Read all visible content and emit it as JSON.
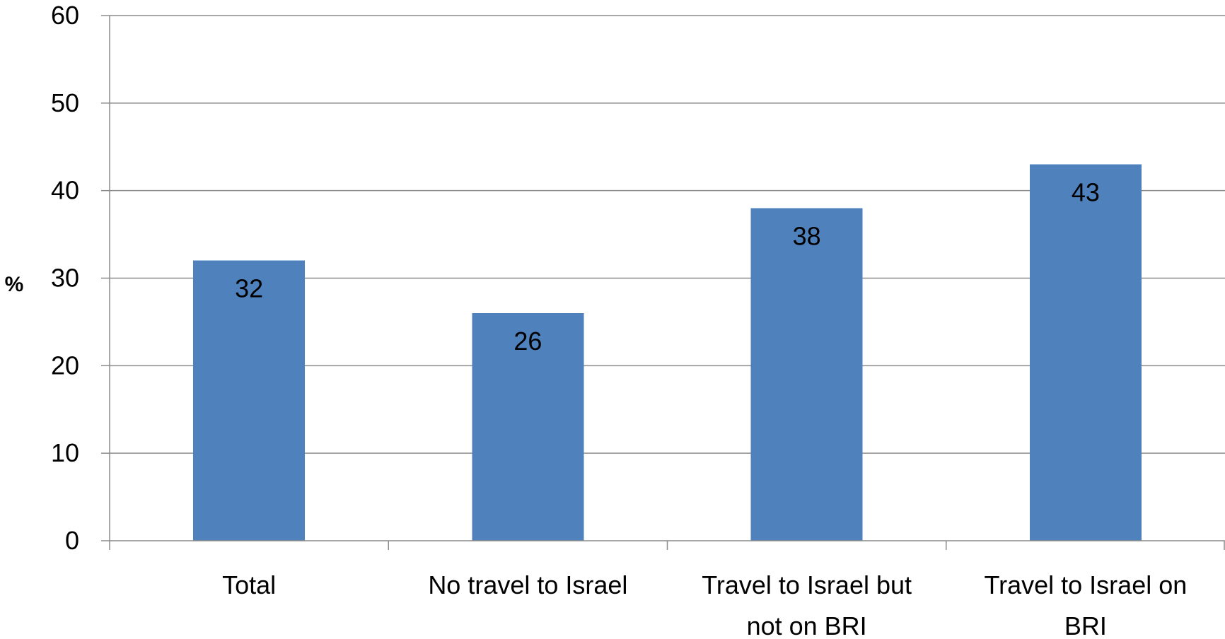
{
  "chart_data": {
    "type": "bar",
    "title": "",
    "xlabel": "",
    "ylabel": "%",
    "ylim": [
      0,
      60
    ],
    "yticks": [
      "0",
      "10",
      "20",
      "30",
      "40",
      "50",
      "60"
    ],
    "grid": true,
    "legend": "none",
    "categories": [
      [
        "Total"
      ],
      [
        "No travel to Israel"
      ],
      [
        "Travel to Israel but",
        "not on BRI"
      ],
      [
        "Travel to Israel on",
        "BRI"
      ]
    ],
    "values": [
      32,
      26,
      38,
      43
    ],
    "data_labels": [
      "32",
      "26",
      "38",
      "43"
    ],
    "colors": {
      "bar": "#4f81bd",
      "grid": "#8c8c8c",
      "text": "#000000"
    }
  }
}
